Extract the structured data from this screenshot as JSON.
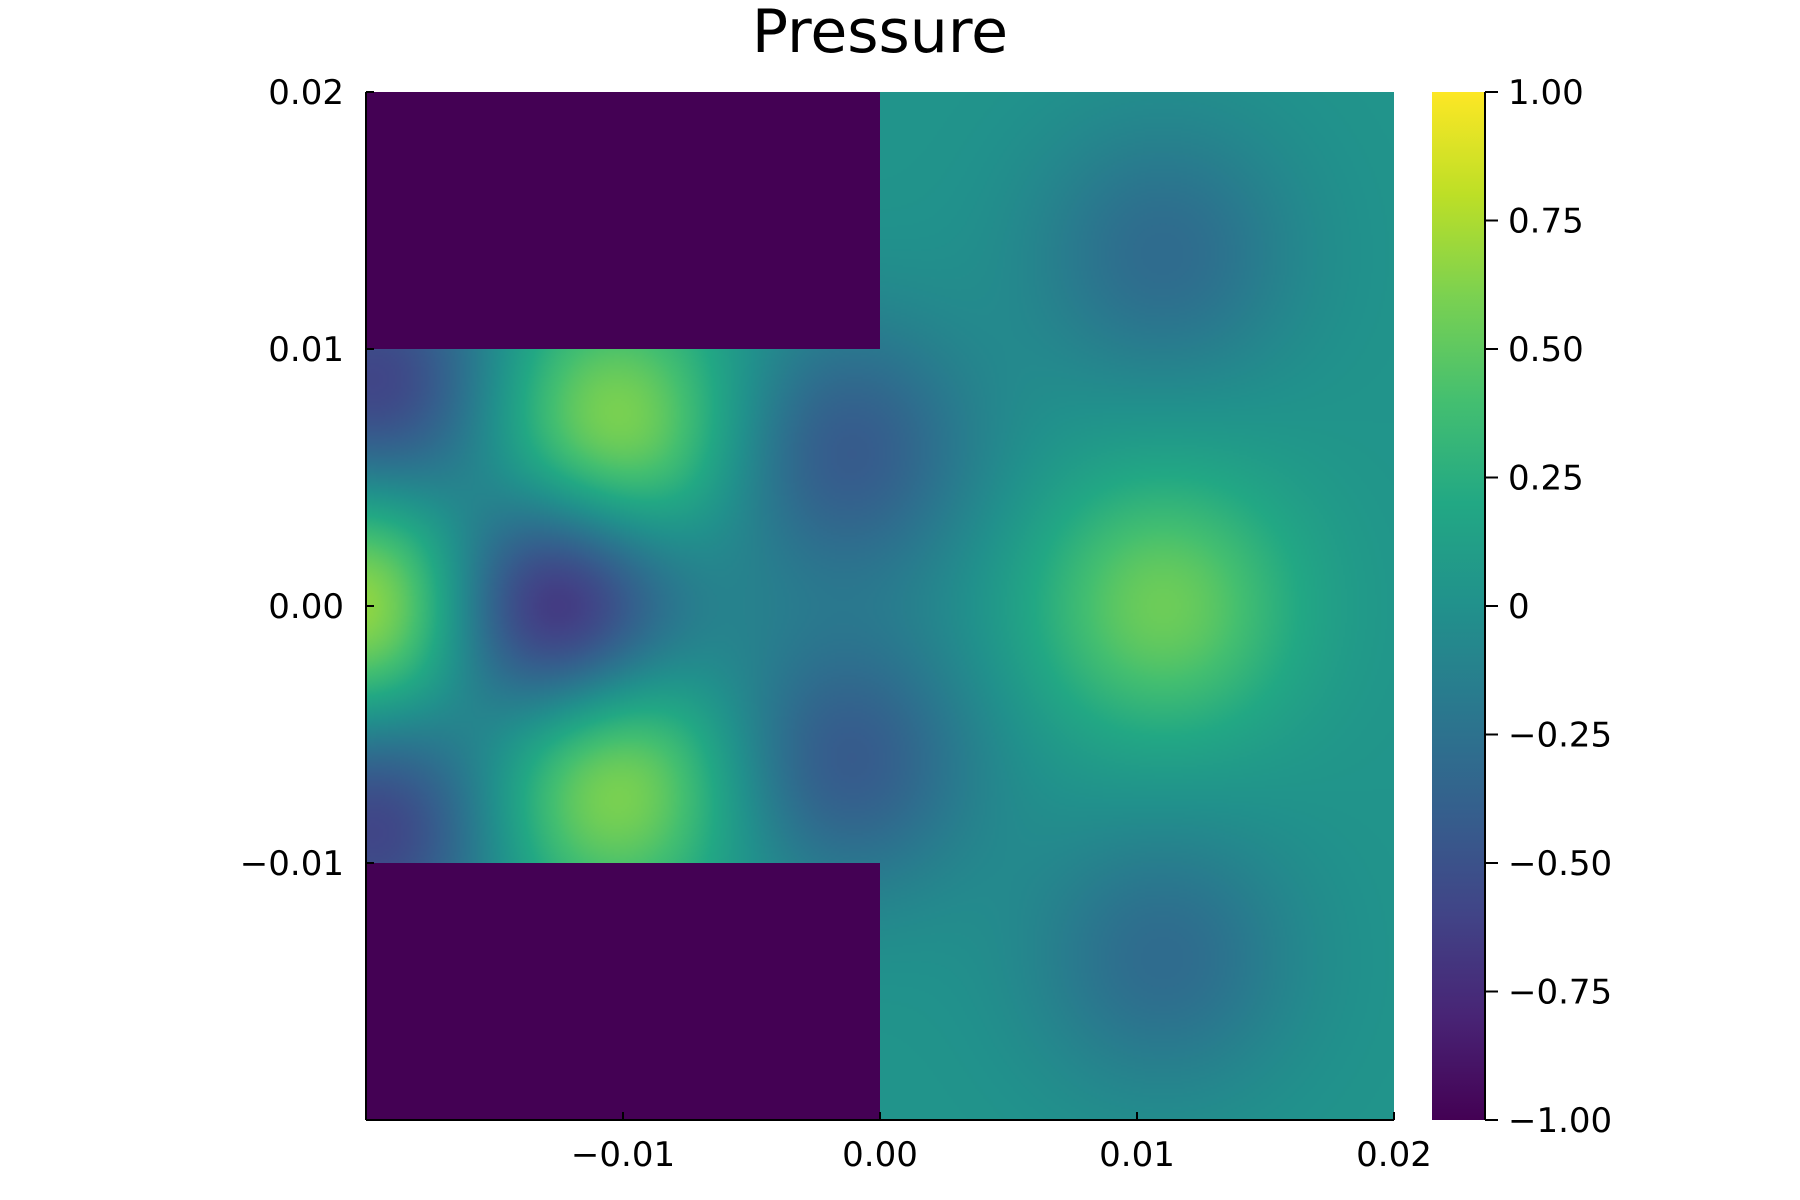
{
  "chart_data": {
    "type": "heatmap",
    "title": "Pressure",
    "xlabel": "",
    "ylabel": "",
    "xlim": [
      -0.02,
      0.02
    ],
    "ylim": [
      -0.02,
      0.02
    ],
    "x_ticks": [
      {
        "value": -0.01,
        "label": "−0.01"
      },
      {
        "value": 0.0,
        "label": "0.00"
      },
      {
        "value": 0.01,
        "label": "0.01"
      },
      {
        "value": 0.02,
        "label": "0.02"
      }
    ],
    "y_ticks": [
      {
        "value": 0.02,
        "label": "0.02"
      },
      {
        "value": 0.01,
        "label": "0.01"
      },
      {
        "value": 0.0,
        "label": "0.00"
      },
      {
        "value": -0.01,
        "label": "−0.01"
      }
    ],
    "colorbar": {
      "colormap": "viridis",
      "range": [
        -1.0,
        1.0
      ],
      "ticks": [
        {
          "value": 1.0,
          "label": "1.00"
        },
        {
          "value": 0.75,
          "label": "0.75"
        },
        {
          "value": 0.5,
          "label": "0.50"
        },
        {
          "value": 0.25,
          "label": "0.25"
        },
        {
          "value": 0.0,
          "label": "0"
        },
        {
          "value": -0.25,
          "label": "−0.25"
        },
        {
          "value": -0.5,
          "label": "−0.50"
        },
        {
          "value": -0.75,
          "label": "−0.75"
        },
        {
          "value": -1.0,
          "label": "−1.00"
        }
      ]
    },
    "solid_regions": [
      {
        "name": "upper-wall",
        "x": [
          -0.02,
          0.0
        ],
        "y": [
          0.01,
          0.02
        ],
        "value": -1.0
      },
      {
        "name": "lower-wall",
        "x": [
          -0.02,
          0.0
        ],
        "y": [
          -0.02,
          -0.01
        ],
        "value": -1.0
      }
    ],
    "field_peaks": [
      {
        "x": -0.0195,
        "y": 0.0,
        "value": 0.9
      },
      {
        "x": -0.0129,
        "y": 0.0,
        "value": -1.0
      },
      {
        "x": -0.0105,
        "y": 0.0066,
        "value": 0.75
      },
      {
        "x": -0.0105,
        "y": -0.0066,
        "value": 0.75
      },
      {
        "x": -0.0015,
        "y": 0.006,
        "value": -0.45
      },
      {
        "x": -0.0015,
        "y": -0.006,
        "value": -0.45
      },
      {
        "x": 0.011,
        "y": 0.0,
        "value": 0.55
      },
      {
        "x": 0.011,
        "y": 0.0137,
        "value": -0.3
      },
      {
        "x": 0.011,
        "y": -0.0137,
        "value": -0.3
      },
      {
        "x": -0.0195,
        "y": 0.0083,
        "value": -0.65
      },
      {
        "x": -0.0195,
        "y": -0.0083,
        "value": -0.65
      }
    ]
  }
}
